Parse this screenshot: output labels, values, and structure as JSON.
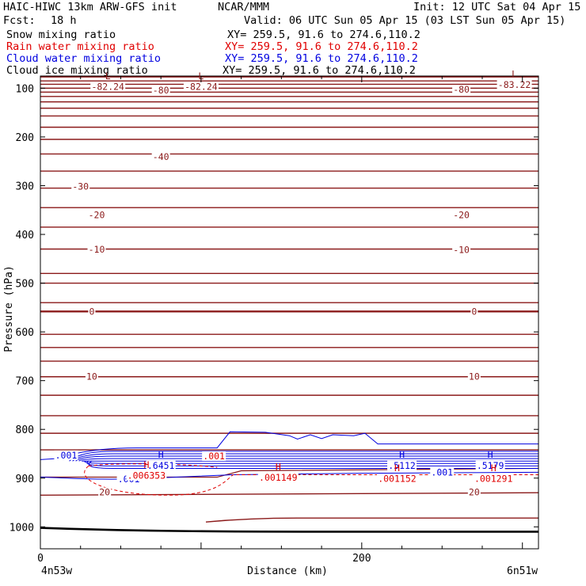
{
  "header": {
    "title_left": "HAIC-HIWC 13km ARW-GFS init",
    "org": "NCAR/MMM",
    "init": "Init: 12 UTC Sat 04 Apr 15",
    "fcst_label": "Fcst:",
    "fcst_value": "18 h",
    "valid": "Valid: 06 UTC Sun 05 Apr 15 (03 LST Sun 05 Apr 15)",
    "fields": [
      {
        "name": "Snow mixing ratio",
        "xy": "XY= 259.5, 91.6 to 274.6,110.2",
        "color": "#000000"
      },
      {
        "name": "Rain water mixing ratio",
        "xy": "XY= 259.5, 91.6 to 274.6,110.2",
        "color": "#e00000"
      },
      {
        "name": "Cloud water mixing ratio",
        "xy": "XY= 259.5, 91.6 to 274.6,110.2",
        "color": "#0000e0"
      },
      {
        "name": "Cloud ice mixing ratio",
        "xy": "XY= 259.5, 91.6 to 274.6,110.2",
        "color": "#000000"
      }
    ]
  },
  "chart_data": {
    "type": "contour cross-section",
    "xlabel": "Distance (km)",
    "ylabel": "Pressure (hPa)",
    "xlim": [
      0,
      310
    ],
    "ylim": [
      1045,
      75
    ],
    "x_ticks": [
      0,
      200
    ],
    "y_ticks": [
      100,
      200,
      300,
      400,
      500,
      600,
      700,
      800,
      900,
      1000
    ],
    "x_endpoints": [
      "4n53w",
      "6n51w"
    ],
    "colors": {
      "temperature": "#8b1a1a",
      "rain": "#e00000",
      "cloud_water": "#0000e0"
    },
    "temperature_contours": [
      {
        "label": "-80",
        "x": 75,
        "p": 104
      },
      {
        "label": "-80",
        "x": 262,
        "p": 103
      },
      {
        "label": "-40",
        "x": 75,
        "p": 241
      },
      {
        "label": "-30",
        "x": 25,
        "p": 302
      },
      {
        "label": "-20",
        "x": 35,
        "p": 360
      },
      {
        "label": "-20",
        "x": 262,
        "p": 360
      },
      {
        "label": "-10",
        "x": 35,
        "p": 431
      },
      {
        "label": "-10",
        "x": 262,
        "p": 432
      },
      {
        "label": "0",
        "x": 32,
        "p": 558
      },
      {
        "label": "0",
        "x": 270,
        "p": 558
      },
      {
        "label": "10",
        "x": 32,
        "p": 692
      },
      {
        "label": "10",
        "x": 270,
        "p": 692
      },
      {
        "label": "20",
        "x": 40,
        "p": 929
      },
      {
        "label": "20",
        "x": 270,
        "p": 929
      }
    ],
    "extrema": [
      {
        "type": "L",
        "value": "-82.24",
        "x": 42,
        "p": 88,
        "color": "#8b1a1a"
      },
      {
        "type": "L",
        "value": "-82.24",
        "x": 100,
        "p": 88,
        "color": "#8b1a1a"
      },
      {
        "type": "L",
        "value": "-83.22",
        "x": 295,
        "p": 84,
        "color": "#8b1a1a"
      },
      {
        "type": "H",
        "value": ".6451",
        "x": 75,
        "p": 865,
        "color": "#0000e0"
      },
      {
        "type": "H",
        "value": ".5112",
        "x": 225,
        "p": 865,
        "color": "#0000e0"
      },
      {
        "type": "H",
        "value": ".5179",
        "x": 280,
        "p": 865,
        "color": "#0000e0"
      },
      {
        "type": "H",
        "value": ".006353",
        "x": 66,
        "p": 886,
        "color": "#e00000"
      },
      {
        "type": "H",
        "value": ".001149",
        "x": 148,
        "p": 890,
        "color": "#e00000"
      },
      {
        "type": "H",
        "value": ".001152",
        "x": 222,
        "p": 892,
        "color": "#e00000"
      },
      {
        "type": "H",
        "value": ".001291",
        "x": 282,
        "p": 892,
        "color": "#e00000"
      }
    ],
    "cloud_water_labels": [
      {
        "label": ".001",
        "x": 16,
        "p": 853
      },
      {
        "label": ".001",
        "x": 55,
        "p": 902
      },
      {
        "label": ".001",
        "x": 250,
        "p": 888
      }
    ],
    "rain_labels": [
      {
        "label": ".001",
        "x": 108,
        "p": 855
      }
    ]
  }
}
